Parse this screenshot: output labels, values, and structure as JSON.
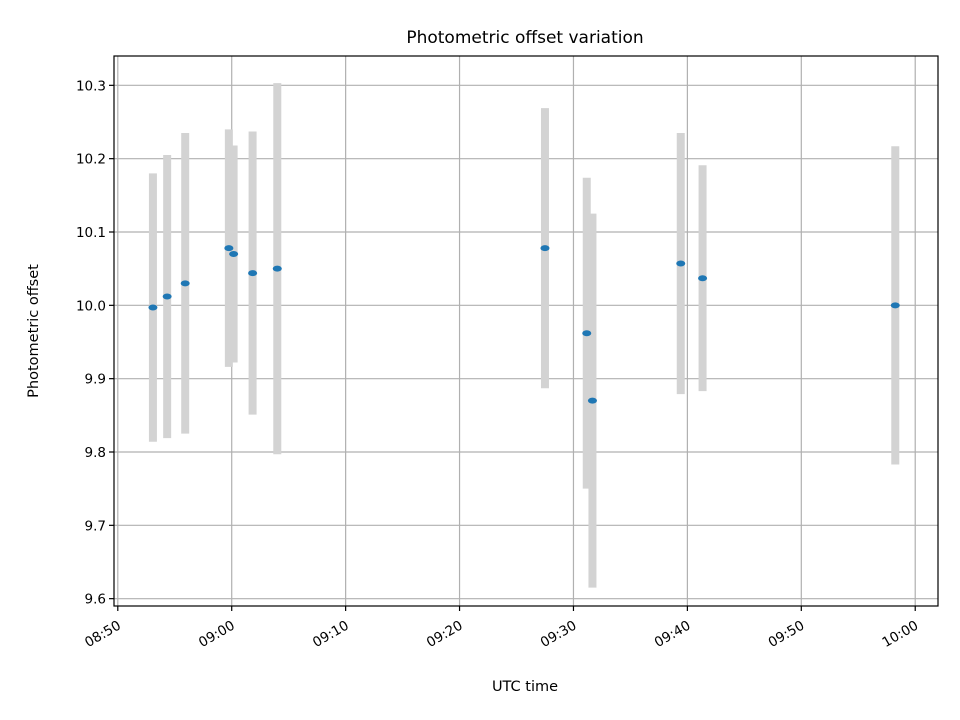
{
  "chart_data": {
    "type": "scatter",
    "title": "Photometric offset variation",
    "xlabel": "UTC time",
    "ylabel": "Photometric offset",
    "x_ticks": [
      "08:50",
      "09:00",
      "09:10",
      "09:20",
      "09:30",
      "09:40",
      "09:50",
      "10:00"
    ],
    "y_ticks": [
      "9.6",
      "9.7",
      "9.8",
      "9.9",
      "10.0",
      "10.1",
      "10.2",
      "10.3"
    ],
    "xlim": [
      "08:49:40",
      "10:02:00"
    ],
    "ylim": [
      9.59,
      10.34
    ],
    "grid": true,
    "colors": {
      "marker": "#1f77b4",
      "errorbar": "#d3d3d3",
      "grid": "#b0b0b0"
    },
    "points": [
      {
        "x": "08:53:05",
        "y": 9.997,
        "err": 0.183
      },
      {
        "x": "08:54:20",
        "y": 10.012,
        "err": 0.193
      },
      {
        "x": "08:55:55",
        "y": 10.03,
        "err": 0.205
      },
      {
        "x": "08:59:45",
        "y": 10.078,
        "err": 0.162
      },
      {
        "x": "09:00:10",
        "y": 10.07,
        "err": 0.148
      },
      {
        "x": "09:01:50",
        "y": 10.044,
        "err": 0.193
      },
      {
        "x": "09:04:00",
        "y": 10.05,
        "err": 0.253
      },
      {
        "x": "09:27:30",
        "y": 10.078,
        "err": 0.191
      },
      {
        "x": "09:31:10",
        "y": 9.962,
        "err": 0.212
      },
      {
        "x": "09:31:40",
        "y": 9.87,
        "err": 0.255
      },
      {
        "x": "09:39:25",
        "y": 10.057,
        "err": 0.178
      },
      {
        "x": "09:41:20",
        "y": 10.037,
        "err": 0.154
      },
      {
        "x": "09:58:15",
        "y": 10.0,
        "err": 0.217
      }
    ]
  }
}
